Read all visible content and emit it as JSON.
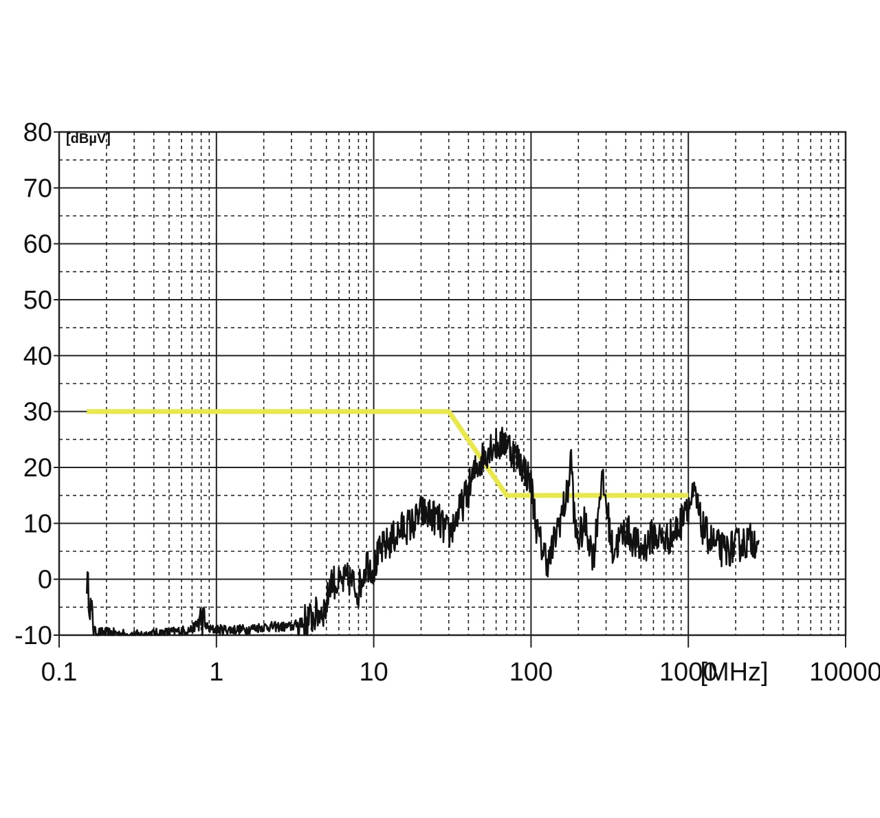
{
  "chart_data": {
    "type": "line",
    "y_unit_label": "[dBµV]",
    "x_unit_label": "[MHz]",
    "x_scale": "log",
    "xlim": [
      0.1,
      10000
    ],
    "ylim": [
      -10,
      80
    ],
    "x_ticks": [
      0.1,
      1,
      10,
      100,
      1000,
      10000
    ],
    "x_tick_labels": [
      "0.1",
      "1",
      "10",
      "100",
      "1000",
      "10000"
    ],
    "y_ticks": [
      80,
      70,
      60,
      50,
      40,
      30,
      20,
      10,
      0,
      -10
    ],
    "y_tick_labels": [
      "80",
      "70",
      "60",
      "50",
      "40",
      "30",
      "20",
      "10",
      "0",
      "-10"
    ],
    "grid": true,
    "series": [
      {
        "color": "#e8e84a",
        "role": "limit",
        "points": [
          [
            0.15,
            30
          ],
          [
            30,
            30
          ],
          [
            70,
            15
          ],
          [
            1000,
            15
          ]
        ]
      },
      {
        "color": "#111111",
        "role": "measurement",
        "noisy": true,
        "points": [
          [
            0.15,
            0
          ],
          [
            0.16,
            -6
          ],
          [
            0.17,
            -9.5
          ],
          [
            0.2,
            -9.5
          ],
          [
            0.3,
            -10
          ],
          [
            0.5,
            -9.5
          ],
          [
            0.7,
            -9
          ],
          [
            0.8,
            -7
          ],
          [
            0.9,
            -9
          ],
          [
            1,
            -9
          ],
          [
            1.5,
            -9
          ],
          [
            2,
            -8.5
          ],
          [
            3,
            -8.5
          ],
          [
            4,
            -7
          ],
          [
            5,
            -5
          ],
          [
            5.3,
            0
          ],
          [
            6,
            -1
          ],
          [
            7,
            0
          ],
          [
            8,
            -2
          ],
          [
            9,
            3
          ],
          [
            10,
            2
          ],
          [
            11,
            5
          ],
          [
            13,
            7
          ],
          [
            15,
            9
          ],
          [
            18,
            10
          ],
          [
            20,
            12
          ],
          [
            25,
            11
          ],
          [
            30,
            8
          ],
          [
            35,
            12
          ],
          [
            40,
            16
          ],
          [
            45,
            20
          ],
          [
            50,
            22
          ],
          [
            55,
            24
          ],
          [
            60,
            24
          ],
          [
            65,
            24
          ],
          [
            70,
            25
          ],
          [
            75,
            23
          ],
          [
            80,
            22
          ],
          [
            90,
            20
          ],
          [
            100,
            17
          ],
          [
            110,
            8
          ],
          [
            120,
            5
          ],
          [
            130,
            3
          ],
          [
            150,
            10
          ],
          [
            170,
            15
          ],
          [
            180,
            22
          ],
          [
            190,
            9
          ],
          [
            200,
            7
          ],
          [
            220,
            10
          ],
          [
            250,
            4
          ],
          [
            280,
            18
          ],
          [
            300,
            14
          ],
          [
            330,
            5
          ],
          [
            400,
            9
          ],
          [
            500,
            5
          ],
          [
            600,
            8
          ],
          [
            700,
            7
          ],
          [
            800,
            8
          ],
          [
            900,
            10
          ],
          [
            950,
            14
          ],
          [
            1000,
            13
          ],
          [
            1100,
            15
          ],
          [
            1200,
            10
          ],
          [
            1300,
            8
          ],
          [
            1500,
            6
          ],
          [
            1700,
            5
          ],
          [
            2000,
            6
          ],
          [
            2500,
            7
          ],
          [
            2800,
            7
          ]
        ]
      }
    ]
  }
}
